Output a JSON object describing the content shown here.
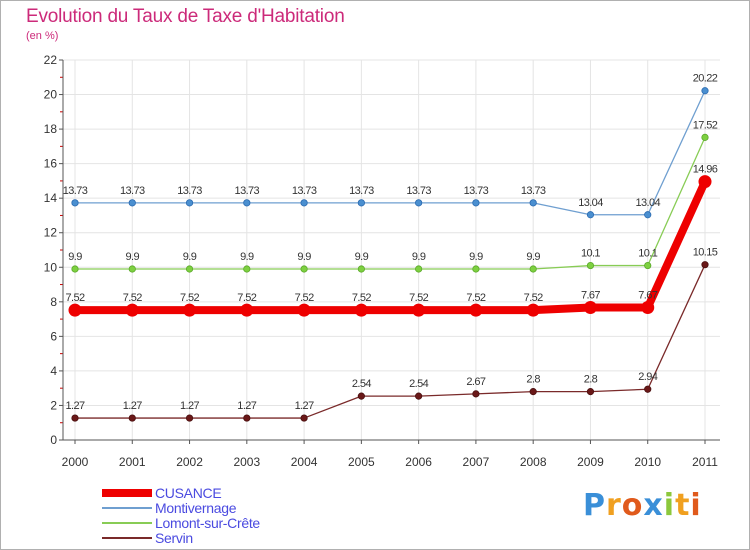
{
  "title": "Evolution du Taux de Taxe d'Habitation",
  "subtitle": "(en %)",
  "chart_data": {
    "type": "line",
    "title": "Evolution du Taux de Taxe d'Habitation",
    "ylabel": "(en %)",
    "xlabel": "",
    "x": [
      "2000",
      "2001",
      "2002",
      "2003",
      "2004",
      "2005",
      "2006",
      "2007",
      "2008",
      "2009",
      "2010",
      "2011"
    ],
    "ylim": [
      0,
      22
    ],
    "yticks": [
      0,
      2,
      4,
      6,
      8,
      10,
      12,
      14,
      16,
      18,
      20,
      22
    ],
    "ytick_labels": [
      "0",
      "2",
      "4",
      "6",
      "8",
      "10",
      "12",
      "14",
      "16",
      "18",
      "20",
      "22"
    ],
    "grid": true,
    "legend": "bottom-left",
    "series": [
      {
        "name": "CUSANCE",
        "color": "#ee0000",
        "values": [
          7.52,
          7.52,
          7.52,
          7.52,
          7.52,
          7.52,
          7.52,
          7.52,
          7.52,
          7.67,
          7.67,
          14.96
        ],
        "labels": [
          "7.52",
          "7.52",
          "7.52",
          "7.52",
          "7.52",
          "7.52",
          "7.52",
          "7.52",
          "7.52",
          "7.67",
          "7.67",
          "14.96"
        ]
      },
      {
        "name": "Montivernage",
        "color": "#6f9fd0",
        "values": [
          13.73,
          13.73,
          13.73,
          13.73,
          13.73,
          13.73,
          13.73,
          13.73,
          13.73,
          13.04,
          13.04,
          20.22
        ],
        "labels": [
          "13.73",
          "13.73",
          "13.73",
          "13.73",
          "13.73",
          "13.73",
          "13.73",
          "13.73",
          "13.73",
          "13.04",
          "13.04",
          "20.22"
        ]
      },
      {
        "name": "Lomont-sur-Crête",
        "color": "#88cc55",
        "values": [
          9.9,
          9.9,
          9.9,
          9.9,
          9.9,
          9.9,
          9.9,
          9.9,
          9.9,
          10.1,
          10.1,
          17.52
        ],
        "labels": [
          "9.9",
          "9.9",
          "9.9",
          "9.9",
          "9.9",
          "9.9",
          "9.9",
          "9.9",
          "9.9",
          "10.1",
          "10.1",
          "17.52"
        ]
      },
      {
        "name": "Servin",
        "color": "#7a2a2a",
        "values": [
          1.27,
          1.27,
          1.27,
          1.27,
          1.27,
          2.54,
          2.54,
          2.67,
          2.8,
          2.8,
          2.94,
          10.15
        ],
        "labels": [
          "1.27",
          "1.27",
          "1.27",
          "1.27",
          "1.27",
          "2.54",
          "2.54",
          "2.67",
          "2.8",
          "2.8",
          "2.94",
          "10.15"
        ]
      }
    ]
  },
  "logo": {
    "letters": [
      "P",
      "r",
      "o",
      "x",
      "i",
      "t",
      "i"
    ],
    "colors": [
      "#3a8fd8",
      "#f0a020",
      "#e05a1c",
      "#3a8fd8",
      "#8cc83c",
      "#f0a020",
      "#e05a1c"
    ]
  }
}
